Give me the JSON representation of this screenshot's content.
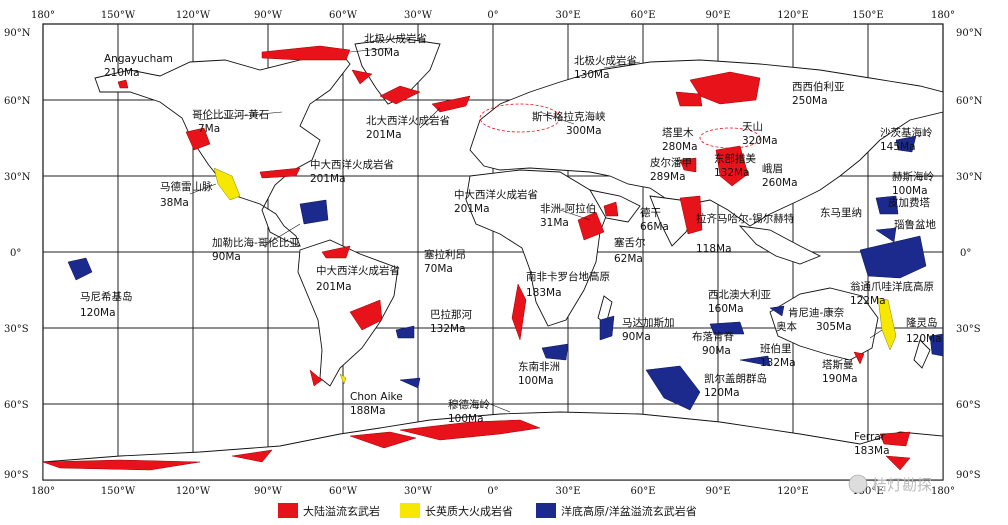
{
  "axes": {
    "top_lon": [
      "180°",
      "150°W",
      "120°W",
      "90°W",
      "60°W",
      "30°W",
      "0°",
      "30°E",
      "60°E",
      "90°E",
      "120°E",
      "150°E",
      "180°"
    ],
    "bottom_lon": [
      "180°",
      "150°W",
      "120°W",
      "90°W",
      "60°W",
      "30°W",
      "0°",
      "30°E",
      "60°E",
      "90°E",
      "120°E",
      "150°E",
      "180°"
    ],
    "left_lat": [
      "90°N",
      "60°N",
      "30°N",
      "0°",
      "30°S",
      "60°S",
      "90°S"
    ],
    "right_lat": [
      "90°N",
      "60°N",
      "30°N",
      "0°",
      "30°S",
      "60°S",
      "90°S"
    ]
  },
  "colors": {
    "flood": "#e8121a",
    "silicic": "#f6e800",
    "oceanic": "#1b2a8c",
    "land": "#ffffff",
    "coast": "#111111"
  },
  "labels": [
    {
      "name": "Angayucham",
      "age": "210Ma"
    },
    {
      "name": "北极火成岩省",
      "age": "130Ma"
    },
    {
      "name": "北极火成岩省",
      "age": "130Ma"
    },
    {
      "name": "西西伯利亚",
      "age": "250Ma"
    },
    {
      "name": "哥伦比亚河-黄石",
      "age": "7Ma"
    },
    {
      "name": "北大西洋火成岩省",
      "age": "201Ma"
    },
    {
      "name": "斯卡格拉克海峡",
      "age": "300Ma"
    },
    {
      "name": "塔里木",
      "age": "280Ma"
    },
    {
      "name": "天山",
      "age": "320Ma"
    },
    {
      "name": "沙茨基海岭",
      "age": "145Ma"
    },
    {
      "name": "中大西洋火成岩省",
      "age": "201Ma"
    },
    {
      "name": "皮尔潘甲",
      "age": "289Ma"
    },
    {
      "name": "东部措美",
      "age": "132Ma"
    },
    {
      "name": "峨眉",
      "age": "260Ma"
    },
    {
      "name": "赫斯海岭",
      "age": "100Ma"
    },
    {
      "name": "马德雷山脉",
      "age": "38Ma"
    },
    {
      "name": "中大西洋火成岩省",
      "age": "201Ma"
    },
    {
      "name": "非洲-阿拉伯",
      "age": "31Ma"
    },
    {
      "name": "德干",
      "age": "66Ma"
    },
    {
      "name": "拉齐马哈尔-锡尔赫特",
      "age": "118Ma"
    },
    {
      "name": "皮加费塔",
      "age": ""
    },
    {
      "name": "东马里纳",
      "age": ""
    },
    {
      "name": "瑙鲁盆地",
      "age": ""
    },
    {
      "name": "加勒比海-哥伦比亚",
      "age": "90Ma"
    },
    {
      "name": "塞拉利昂",
      "age": "70Ma"
    },
    {
      "name": "塞舌尔",
      "age": "62Ma"
    },
    {
      "name": "中大西洋火成岩省",
      "age": "201Ma"
    },
    {
      "name": "南非卡罗台地高原",
      "age": "183Ma"
    },
    {
      "name": "翁通爪哇洋底高原",
      "age": "122Ma"
    },
    {
      "name": "马尼希基岛",
      "age": "120Ma"
    },
    {
      "name": "西北澳大利亚",
      "age": "160Ma"
    },
    {
      "name": "肯尼迪-康奈",
      "age": ""
    },
    {
      "name": "奥本",
      "age": "305Ma"
    },
    {
      "name": "巴拉那河",
      "age": "132Ma"
    },
    {
      "name": "马达加斯加",
      "age": "90Ma"
    },
    {
      "name": "布落肯脊",
      "age": "90Ma"
    },
    {
      "name": "班伯里",
      "age": "132Ma"
    },
    {
      "name": "隆灵岛",
      "age": "120Ma"
    },
    {
      "name": "塔斯曼",
      "age": "190Ma"
    },
    {
      "name": "东南非洲",
      "age": "100Ma"
    },
    {
      "name": "凯尔盖朗群岛",
      "age": "120Ma"
    },
    {
      "name": "Chon Aike",
      "age": "188Ma"
    },
    {
      "name": "穆德海岭",
      "age": "100Ma"
    },
    {
      "name": "Ferrar",
      "age": "183Ma"
    }
  ],
  "legend": [
    {
      "label": "大陆溢流玄武岩",
      "color": "#e8121a"
    },
    {
      "label": "长英质大火成岩省",
      "color": "#f6e800"
    },
    {
      "label": "洋底高原/洋盆溢流玄武岩省",
      "color": "#1b2a8c"
    }
  ],
  "watermark": "桔灯勘探"
}
